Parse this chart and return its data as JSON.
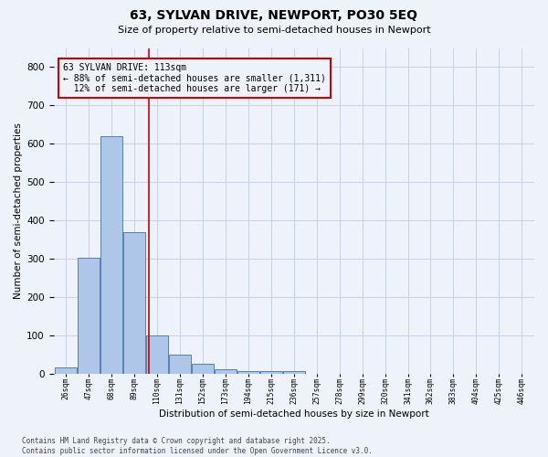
{
  "title": "63, SYLVAN DRIVE, NEWPORT, PO30 5EQ",
  "subtitle": "Size of property relative to semi-detached houses in Newport",
  "xlabel": "Distribution of semi-detached houses by size in Newport",
  "ylabel": "Number of semi-detached properties",
  "bar_values": [
    15,
    303,
    619,
    370,
    100,
    50,
    25,
    12,
    5,
    5,
    5,
    0,
    0,
    0,
    0,
    0,
    0,
    0,
    0,
    0
  ],
  "bin_labels": [
    "26sqm",
    "47sqm",
    "68sqm",
    "89sqm",
    "110sqm",
    "131sqm",
    "152sqm",
    "173sqm",
    "194sqm",
    "215sqm",
    "236sqm",
    "257sqm",
    "278sqm",
    "299sqm",
    "320sqm",
    "341sqm",
    "362sqm",
    "383sqm",
    "404sqm",
    "425sqm",
    "446sqm"
  ],
  "bin_edges": [
    26,
    47,
    68,
    89,
    110,
    131,
    152,
    173,
    194,
    215,
    236,
    257,
    278,
    299,
    320,
    341,
    362,
    383,
    404,
    425,
    446
  ],
  "property_value": 113,
  "bar_color": "#aec6e8",
  "bar_edge_color": "#5580b0",
  "vline_color": "#cc0000",
  "ylim": [
    0,
    850
  ],
  "yticks": [
    0,
    100,
    200,
    300,
    400,
    500,
    600,
    700,
    800
  ],
  "annotation_text": "63 SYLVAN DRIVE: 113sqm\n← 88% of semi-detached houses are smaller (1,311)\n  12% of semi-detached houses are larger (171) →",
  "annotation_box_color": "#cc0000",
  "footer_line1": "Contains HM Land Registry data © Crown copyright and database right 2025.",
  "footer_line2": "Contains public sector information licensed under the Open Government Licence v3.0.",
  "bg_color": "#eef2fb",
  "grid_color": "#c8d0e8"
}
